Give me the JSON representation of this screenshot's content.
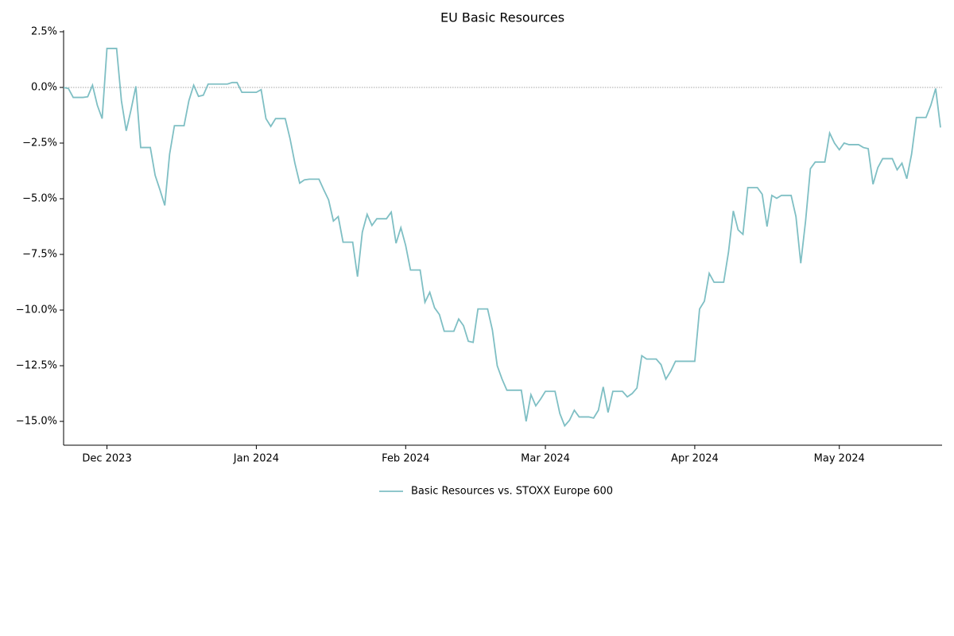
{
  "chart_data": {
    "type": "line",
    "title": "EU Basic Resources",
    "categories": [
      null,
      null,
      null,
      null,
      null,
      null,
      null,
      null,
      null,
      "Dec 2023",
      null,
      null,
      null,
      null,
      null,
      null,
      null,
      null,
      null,
      null,
      null,
      null,
      null,
      null,
      null,
      null,
      null,
      null,
      null,
      null,
      null,
      null,
      null,
      null,
      null,
      null,
      null,
      null,
      null,
      null,
      "Jan 2024",
      null,
      null,
      null,
      null,
      null,
      null,
      null,
      null,
      null,
      null,
      null,
      null,
      null,
      null,
      null,
      null,
      null,
      null,
      null,
      null,
      null,
      null,
      null,
      null,
      null,
      null,
      null,
      null,
      null,
      null,
      "Feb 2024",
      null,
      null,
      null,
      null,
      null,
      null,
      null,
      null,
      null,
      null,
      null,
      null,
      null,
      null,
      null,
      null,
      null,
      null,
      null,
      null,
      null,
      null,
      null,
      null,
      null,
      null,
      null,
      null,
      "Mar 2024",
      null,
      null,
      null,
      null,
      null,
      null,
      null,
      null,
      null,
      null,
      null,
      null,
      null,
      null,
      null,
      null,
      null,
      null,
      null,
      null,
      null,
      null,
      null,
      null,
      null,
      null,
      null,
      null,
      null,
      null,
      "Apr 2024",
      null,
      null,
      null,
      null,
      null,
      null,
      null,
      null,
      null,
      null,
      null,
      null,
      null,
      null,
      null,
      null,
      null,
      null,
      null,
      null,
      null,
      null,
      null,
      null,
      null,
      null,
      null,
      null,
      null,
      "May 2024",
      null,
      null,
      null,
      null,
      null,
      null,
      null,
      null,
      null,
      null,
      null,
      null,
      null,
      null,
      null,
      null,
      null,
      null,
      null,
      null,
      null
    ],
    "series": [
      {
        "name": "Basic Resources vs. STOXX Europe 600",
        "color": "#7fbfc4",
        "values": [
          0,
          -0.05,
          -0.45,
          -0.45,
          -0.45,
          -0.42,
          0.1,
          -0.8,
          -1.4,
          1.75,
          1.75,
          1.75,
          -0.6,
          -1.95,
          -1.0,
          0.05,
          -2.7,
          -2.7,
          -2.7,
          -3.95,
          -4.6,
          -5.3,
          -3.0,
          -1.72,
          -1.72,
          -1.72,
          -0.6,
          0.1,
          -0.4,
          -0.35,
          0.15,
          0.15,
          0.15,
          0.15,
          0.15,
          0.22,
          0.22,
          -0.22,
          -0.22,
          -0.22,
          -0.22,
          -0.1,
          -1.4,
          -1.75,
          -1.4,
          -1.4,
          -1.4,
          -2.3,
          -3.4,
          -4.3,
          -4.15,
          -4.12,
          -4.12,
          -4.12,
          -4.6,
          -5.05,
          -6.0,
          -5.8,
          -6.95,
          -6.95,
          -6.95,
          -8.5,
          -6.5,
          -5.7,
          -6.2,
          -5.9,
          -5.9,
          -5.9,
          -5.6,
          -7.0,
          -6.3,
          -7.1,
          -8.2,
          -8.2,
          -8.2,
          -9.65,
          -9.2,
          -9.9,
          -10.2,
          -10.95,
          -10.95,
          -10.95,
          -10.4,
          -10.7,
          -11.4,
          -11.45,
          -9.95,
          -9.95,
          -9.95,
          -10.9,
          -12.5,
          -13.1,
          -13.6,
          -13.6,
          -13.6,
          -13.6,
          -15.0,
          -13.8,
          -14.3,
          -14.0,
          -13.65,
          -13.65,
          -13.65,
          -14.65,
          -15.2,
          -14.95,
          -14.5,
          -14.8,
          -14.8,
          -14.8,
          -14.85,
          -14.5,
          -13.45,
          -14.6,
          -13.65,
          -13.65,
          -13.65,
          -13.9,
          -13.75,
          -13.5,
          -12.05,
          -12.2,
          -12.2,
          -12.2,
          -12.45,
          -13.1,
          -12.75,
          -12.3,
          -12.3,
          -12.3,
          -12.3,
          -12.3,
          -9.95,
          -9.6,
          -8.35,
          -8.75,
          -8.75,
          -8.75,
          -7.4,
          -5.55,
          -6.4,
          -6.6,
          -4.5,
          -4.5,
          -4.5,
          -4.8,
          -6.25,
          -4.85,
          -4.98,
          -4.85,
          -4.85,
          -4.85,
          -5.8,
          -7.9,
          -6.0,
          -3.65,
          -3.35,
          -3.35,
          -3.35,
          -2.05,
          -2.5,
          -2.8,
          -2.5,
          -2.57,
          -2.57,
          -2.57,
          -2.7,
          -2.75,
          -4.35,
          -3.6,
          -3.2,
          -3.2,
          -3.2,
          -3.7,
          -3.4,
          -4.1,
          -3.0,
          -1.35,
          -1.35,
          -1.35,
          -0.8,
          -0.05,
          -1.8
        ]
      }
    ],
    "ylim": [
      -16.07,
      2.57
    ],
    "yticks": [
      {
        "value": 2.5,
        "label": "2.5%"
      },
      {
        "value": 0,
        "label": "0.0%"
      },
      {
        "value": -2.5,
        "label": "−2.5%"
      },
      {
        "value": -5,
        "label": "−5.0%"
      },
      {
        "value": -7.5,
        "label": "−7.5%"
      },
      {
        "value": -10,
        "label": "−10.0%"
      },
      {
        "value": -12.5,
        "label": "−12.5%"
      },
      {
        "value": -15,
        "label": "−15.0%"
      }
    ],
    "hline": 0,
    "legend": "bottom"
  }
}
